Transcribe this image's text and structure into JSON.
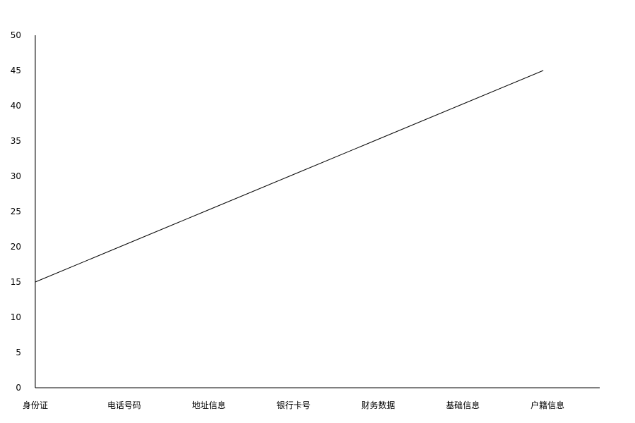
{
  "chart_data": {
    "type": "line",
    "categories": [
      "身份证",
      "电话号码",
      "地址信息",
      "银行卡号",
      "财务数据",
      "基础信息",
      "户籍信息"
    ],
    "series": [
      {
        "values": [
          15,
          20,
          25,
          30,
          35,
          40,
          45
        ]
      }
    ],
    "y_ticks": [
      "0",
      "5",
      "10",
      "15",
      "20",
      "25",
      "30",
      "35",
      "40",
      "45",
      "50"
    ],
    "ylim": [
      0,
      50
    ],
    "grid": false,
    "legend": "none",
    "colors": {
      "line": "#000000",
      "axis": "#000000",
      "background": "#ffffff"
    }
  }
}
